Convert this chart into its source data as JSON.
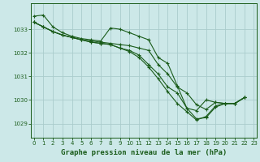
{
  "background_color": "#cce8e8",
  "grid_color": "#aacccc",
  "line_color": "#1a5c1a",
  "xlabel": "Graphe pression niveau de la mer (hPa)",
  "xlabel_fontsize": 6.5,
  "ylim": [
    1028.4,
    1034.1
  ],
  "xlim": [
    -0.3,
    23.3
  ],
  "yticks": [
    1029,
    1030,
    1031,
    1032,
    1033
  ],
  "xticks": [
    0,
    1,
    2,
    3,
    4,
    5,
    6,
    7,
    8,
    9,
    10,
    11,
    12,
    13,
    14,
    15,
    16,
    17,
    18,
    19,
    20,
    21,
    22,
    23
  ],
  "lines": [
    [
      1033.55,
      1033.6,
      1033.1,
      1032.85,
      1032.7,
      1032.6,
      1032.55,
      1032.5,
      1033.05,
      1033.0,
      1032.85,
      1032.7,
      1032.55,
      1031.8,
      1031.55,
      1030.6,
      1029.65,
      1029.55,
      1030.0,
      1029.9,
      1029.85,
      1029.85,
      1030.1,
      null
    ],
    [
      1033.3,
      1033.1,
      1032.9,
      1032.75,
      1032.65,
      1032.55,
      1032.5,
      1032.45,
      1032.4,
      1032.35,
      1032.3,
      1032.2,
      1032.1,
      1031.5,
      1031.1,
      1030.55,
      1030.3,
      1029.8,
      1029.6,
      1029.9,
      1029.85,
      1029.85,
      1030.1,
      null
    ],
    [
      1033.3,
      1033.1,
      1032.9,
      1032.75,
      1032.65,
      1032.55,
      1032.45,
      1032.4,
      1032.35,
      1032.2,
      1032.1,
      1031.9,
      1031.5,
      1031.1,
      1030.55,
      1030.3,
      1029.65,
      1029.2,
      1029.25,
      1029.7,
      1029.85,
      1029.85,
      1030.1,
      null
    ],
    [
      1033.3,
      1033.1,
      1032.9,
      1032.75,
      1032.65,
      1032.55,
      1032.45,
      1032.4,
      1032.35,
      1032.2,
      1032.05,
      1031.8,
      1031.4,
      1030.9,
      1030.35,
      1029.85,
      1029.5,
      1029.15,
      1029.3,
      1029.75,
      1029.85,
      1029.85,
      1030.1,
      null
    ]
  ]
}
